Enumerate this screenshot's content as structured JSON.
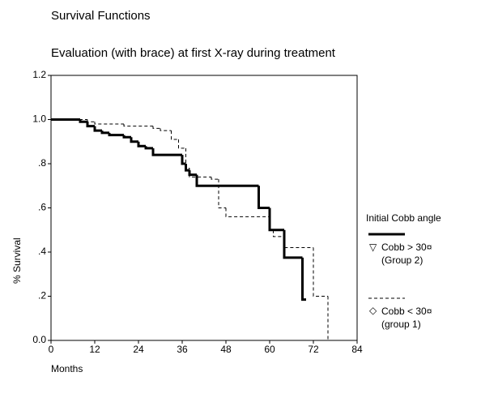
{
  "chart_data": {
    "type": "step",
    "title": "Survival Functions",
    "subtitle": "Evaluation (with brace) at first X-ray during treatment",
    "x_label": "Months",
    "y_label": "% Survival",
    "legend_title": "Initial Cobb angle",
    "xlim": [
      0,
      84
    ],
    "xticks": [
      0,
      12,
      24,
      36,
      48,
      60,
      72,
      84
    ],
    "ylim": [
      0,
      1.2
    ],
    "yticks": [
      {
        "value": 0,
        "label": "0.0"
      },
      {
        "value": 0.2,
        "label": ".2"
      },
      {
        "value": 0.4,
        "label": ".4"
      },
      {
        "value": 0.6,
        "label": ".6"
      },
      {
        "value": 0.8,
        "label": ".8"
      },
      {
        "value": 1,
        "label": "1.0"
      },
      1.2
    ],
    "series": [
      {
        "name": "Cobb > 30¤ (Group 2)",
        "color": "#000000",
        "style": "solid",
        "x": [
          0,
          8,
          10,
          12,
          14,
          16,
          20,
          22,
          24,
          26,
          28,
          36,
          37,
          38,
          40,
          57,
          60,
          64,
          69,
          70
        ],
        "values": [
          1.0,
          0.99,
          0.97,
          0.95,
          0.94,
          0.93,
          0.92,
          0.9,
          0.88,
          0.87,
          0.84,
          0.8,
          0.77,
          0.75,
          0.7,
          0.6,
          0.5,
          0.375,
          0.185,
          0.185
        ]
      },
      {
        "name": "Cobb < 30¤ (group 1)",
        "color": "#000000",
        "style": "dashed",
        "x": [
          0,
          10,
          12,
          20,
          28,
          30,
          33,
          35,
          37,
          38,
          44,
          46,
          48,
          60,
          61,
          64,
          72,
          76
        ],
        "values": [
          1.0,
          0.99,
          0.98,
          0.97,
          0.96,
          0.95,
          0.91,
          0.87,
          0.78,
          0.74,
          0.73,
          0.6,
          0.56,
          0.5,
          0.47,
          0.42,
          0.2,
          0
        ]
      }
    ]
  }
}
